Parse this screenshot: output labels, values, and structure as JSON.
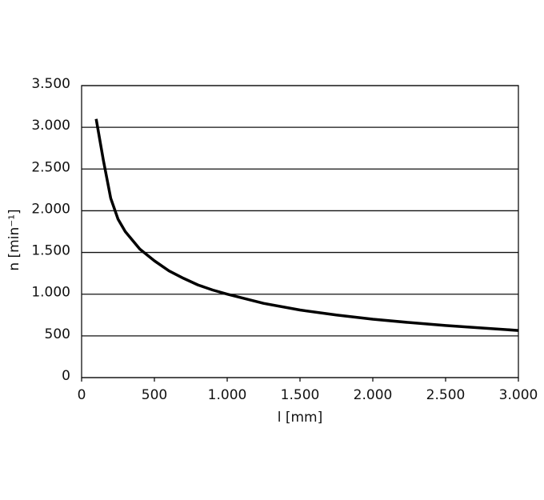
{
  "chart_data": {
    "type": "line",
    "x_label": "l  [mm]",
    "y_label": "n  [min⁻¹]",
    "x": [
      100,
      150,
      200,
      250,
      300,
      400,
      500,
      600,
      700,
      800,
      900,
      1000,
      1250,
      1500,
      1750,
      2000,
      2250,
      2500,
      2750,
      3000
    ],
    "series": [
      {
        "name": "n",
        "color": "#000000",
        "values": [
          3100,
          2600,
          2150,
          1900,
          1750,
          1540,
          1400,
          1280,
          1190,
          1110,
          1050,
          1000,
          890,
          810,
          750,
          700,
          660,
          625,
          595,
          565
        ]
      }
    ],
    "xlim": [
      0,
      3000
    ],
    "xticks": [
      0,
      500,
      {
        "value": 1000,
        "label": "1.000"
      },
      {
        "value": 1500,
        "label": "1.500"
      },
      {
        "value": 2000,
        "label": "2.000"
      },
      {
        "value": 2500,
        "label": "2.500"
      },
      {
        "value": 3000,
        "label": "3.000"
      }
    ],
    "ylim": [
      0,
      3500
    ],
    "yticks": [
      0,
      500,
      {
        "value": 1000,
        "label": "1.000"
      },
      {
        "value": 1500,
        "label": "1.500"
      },
      {
        "value": 2000,
        "label": "2.000"
      },
      {
        "value": 2500,
        "label": "2.500"
      },
      {
        "value": 3000,
        "label": "3.000"
      },
      {
        "value": 3500,
        "label": "3.500"
      }
    ],
    "grid": true
  }
}
